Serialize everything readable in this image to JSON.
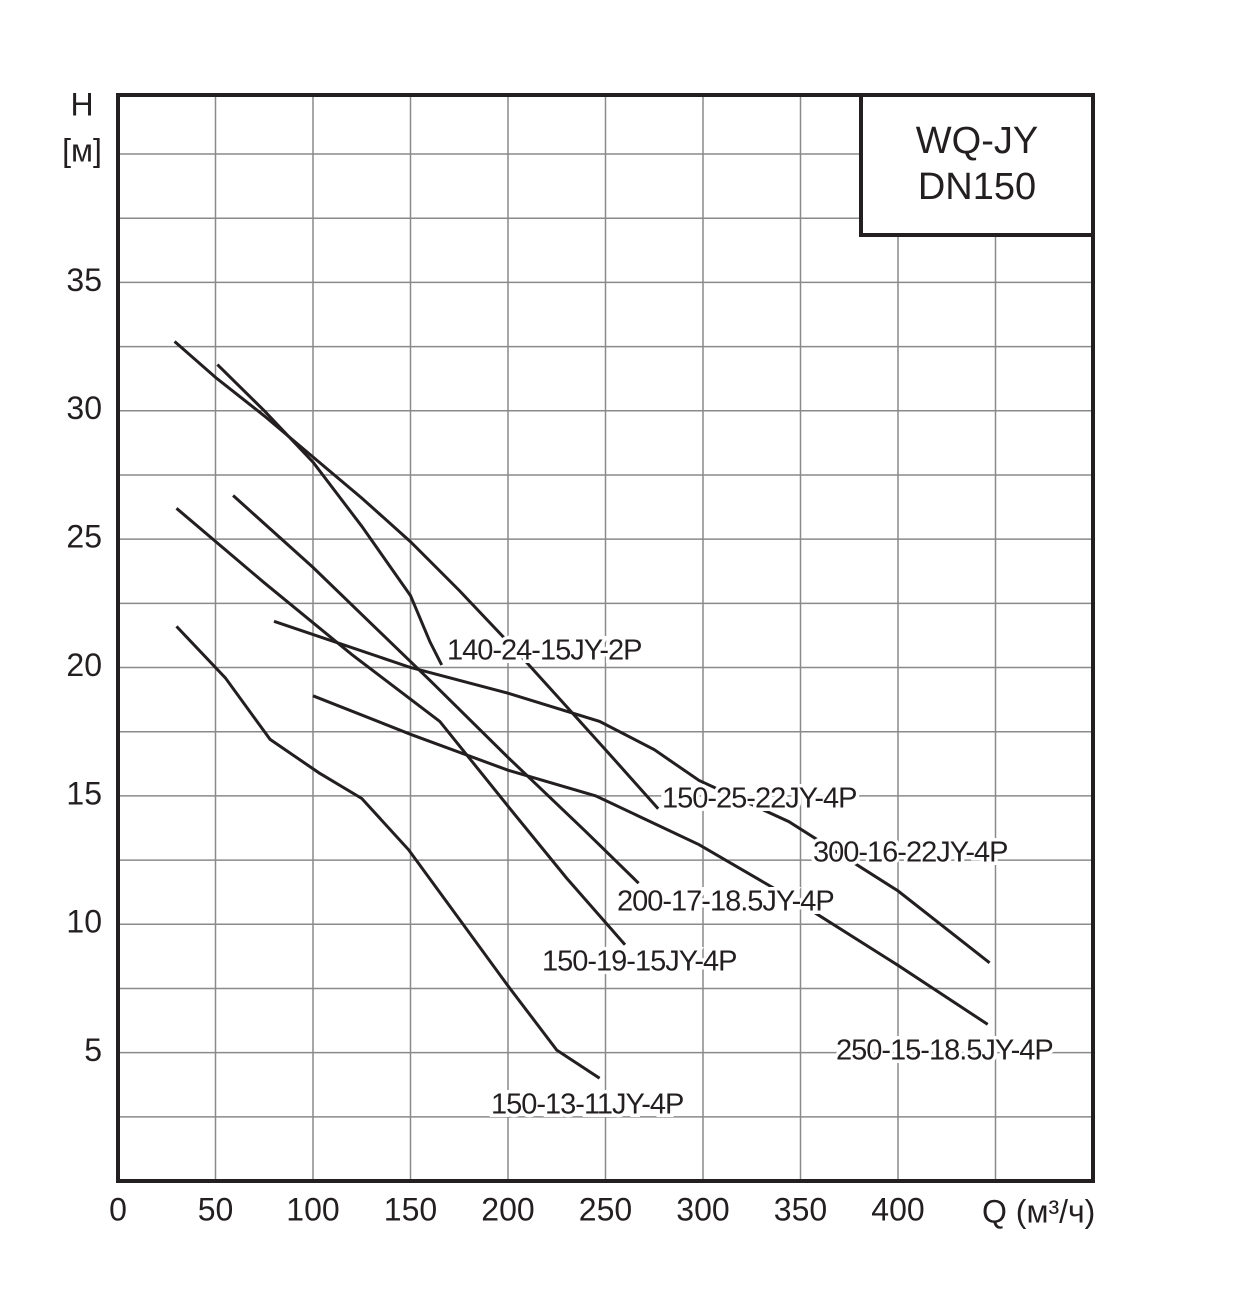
{
  "chart_data": {
    "type": "line",
    "box_title": [
      "WQ-JY",
      "DN150"
    ],
    "y_label": [
      "H",
      "[м]"
    ],
    "x_label": "Q (м³/ч)",
    "xlim": [
      0,
      500
    ],
    "ylim": [
      0,
      42.3
    ],
    "xticks": [
      0,
      50,
      100,
      150,
      200,
      250,
      300,
      350,
      400
    ],
    "yticks": [
      5,
      10,
      15,
      20,
      25,
      30,
      35
    ],
    "xgrid": [
      50,
      100,
      150,
      200,
      250,
      300,
      350,
      400,
      450
    ],
    "ygrid": [
      2.5,
      5,
      7.5,
      10,
      12.5,
      15,
      17.5,
      20,
      22.5,
      25,
      27.5,
      30,
      32.5,
      35,
      37.5,
      40
    ],
    "grid": true,
    "series": [
      {
        "name": "140-24-15JY-2P",
        "color": "#231f20",
        "x": [
          51,
          75,
          100,
          125,
          150,
          160,
          166
        ],
        "values": [
          31.8,
          30,
          28,
          25.5,
          22.8,
          21,
          20.1
        ]
      },
      {
        "name": "150-25-22JY-4P",
        "color": "#231f20",
        "x": [
          29,
          50,
          75,
          100,
          125,
          150,
          175,
          200,
          225,
          250,
          277
        ],
        "values": [
          32.7,
          31.3,
          29.8,
          28.2,
          26.6,
          24.9,
          23,
          21,
          18.9,
          16.8,
          14.5
        ]
      },
      {
        "name": "300-16-22JY-4P",
        "color": "#231f20",
        "x": [
          80,
          150,
          200,
          247,
          275,
          298,
          344,
          400,
          447
        ],
        "values": [
          21.8,
          20,
          19,
          17.9,
          16.8,
          15.6,
          14,
          11.3,
          8.5
        ]
      },
      {
        "name": "200-17-18.5JY-4P",
        "color": "#231f20",
        "x": [
          59,
          100,
          160,
          200,
          240,
          267
        ],
        "values": [
          26.7,
          23.9,
          19.5,
          16.5,
          13.6,
          11.6
        ]
      },
      {
        "name": "150-19-15JY-4P",
        "color": "#231f20",
        "x": [
          30,
          75,
          120,
          165,
          200,
          230,
          260
        ],
        "values": [
          26.2,
          23.3,
          20.5,
          17.9,
          14.6,
          11.8,
          9.2
        ]
      },
      {
        "name": "250-15-18.5JY-4P",
        "color": "#231f20",
        "x": [
          100,
          150,
          200,
          245,
          298,
          350,
          400,
          446
        ],
        "values": [
          18.9,
          17.4,
          16,
          15,
          13.1,
          10.8,
          8.4,
          6.1
        ]
      },
      {
        "name": "150-13-11JY-4P",
        "color": "#231f20",
        "x": [
          30,
          55,
          78,
          103,
          125,
          149,
          175,
          200,
          225,
          247
        ],
        "values": [
          21.6,
          19.6,
          17.2,
          15.9,
          14.9,
          12.9,
          10.2,
          7.6,
          5.1,
          4
        ]
      }
    ]
  }
}
